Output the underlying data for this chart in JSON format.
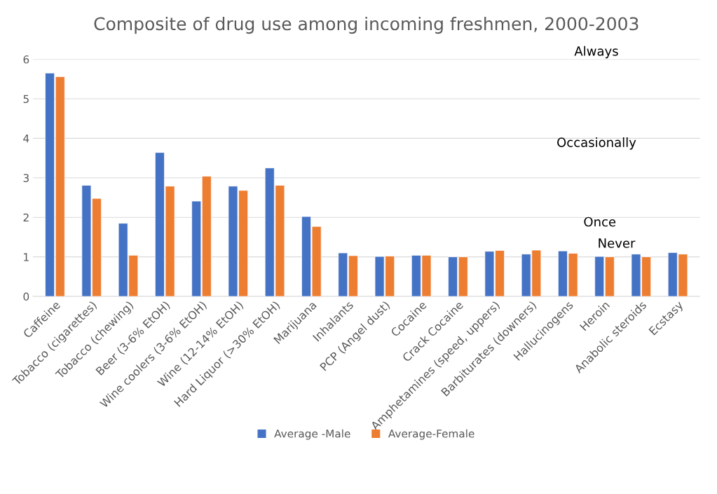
{
  "chart_data": {
    "type": "bar",
    "title": "Composite of drug use among incoming freshmen, 2000-2003",
    "categories": [
      "Caffeine",
      "Tobacco (cigarettes)",
      "Tobacco (chewing)",
      "Beer (3-6% EtOH)",
      "Wine coolers (3-6% EtOH)",
      "Wine (12-14% EtOH)",
      "Hard Liquor (>30% EtOH)",
      "Marijuana",
      "Inhalants",
      "PCP (Angel dust)",
      "Cocaine",
      "Crack Cocaine",
      "Amphetamines (speed, uppers)",
      "Barbiturates (downers)",
      "Hallucinogens",
      "Heroin",
      "Anabolic steroids",
      "Ecstasy"
    ],
    "series": [
      {
        "name": "Average -Male",
        "color": "#4472c4",
        "values": [
          5.65,
          2.81,
          1.85,
          3.64,
          2.41,
          2.79,
          3.25,
          2.02,
          1.1,
          1.01,
          1.04,
          1.0,
          1.14,
          1.07,
          1.15,
          1.01,
          1.07,
          1.11
        ]
      },
      {
        "name": "Average-Female",
        "color": "#ed7d31",
        "values": [
          5.56,
          2.48,
          1.04,
          2.79,
          3.04,
          2.68,
          2.81,
          1.77,
          1.03,
          1.02,
          1.04,
          1.0,
          1.16,
          1.17,
          1.09,
          1.0,
          1.0,
          1.07
        ]
      }
    ],
    "ylim": [
      0,
      6
    ],
    "yticks": [
      0,
      1,
      2,
      3,
      4,
      5,
      6
    ],
    "grid": "y",
    "legend": "bottom",
    "annotations": [
      "Always",
      "Occasionally",
      "Once",
      "Never"
    ]
  }
}
